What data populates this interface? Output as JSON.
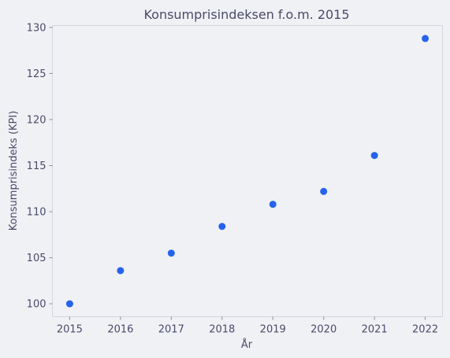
{
  "chart_data": {
    "type": "scatter",
    "title": "Konsumprisindeksen f.o.m. 2015",
    "xlabel": "År",
    "ylabel": "Konsumprisindeks (KPI)",
    "x": [
      2015,
      2016,
      2017,
      2018,
      2019,
      2020,
      2021,
      2022
    ],
    "y": [
      100.0,
      103.6,
      105.5,
      108.4,
      110.8,
      112.2,
      116.1,
      128.8
    ],
    "xticks": [
      "2015",
      "2016",
      "2017",
      "2018",
      "2019",
      "2020",
      "2021",
      "2022"
    ],
    "yticks": [
      "100",
      "105",
      "110",
      "115",
      "120",
      "125",
      "130"
    ],
    "xlim": [
      2014.66,
      2022.34
    ],
    "ylim": [
      98.6,
      130.2
    ],
    "grid": false,
    "legend": "none",
    "point_color": "#2563eb"
  }
}
